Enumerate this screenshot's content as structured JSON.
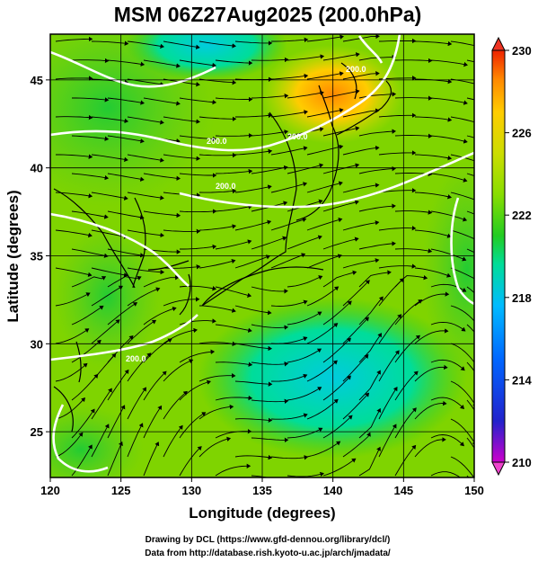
{
  "title": "MSM 06Z27Aug2025 (200.0hPa)",
  "xlabel": "Longitude (degrees)",
  "ylabel": "Latitude  (degrees)",
  "xticks": [
    120,
    125,
    130,
    135,
    140,
    145,
    150
  ],
  "yticks": [
    25,
    30,
    35,
    40,
    45
  ],
  "colorbar": {
    "ticks": [
      210,
      214,
      218,
      222,
      226,
      230
    ],
    "min": 210,
    "max": 230,
    "colors": [
      "#cc00cc",
      "#0000cc",
      "#0066ff",
      "#00bbff",
      "#00dd99",
      "#22cc22",
      "#88dd00",
      "#ccdd00",
      "#ffcc00",
      "#ff8800",
      "#ee2200"
    ]
  },
  "contour_labels": [
    "200.0",
    "200.0",
    "200.0",
    "200.0",
    "200.0"
  ],
  "credits": {
    "line1": "Drawing by DCL (https://www.gfd-dennou.org/library/dcl/)",
    "line2": "Data from http://database.rish.kyoto-u.ac.jp/arch/jmadata/"
  },
  "chart_data": {
    "type": "heatmap",
    "title": "MSM 06Z27Aug2025 (200.0hPa)",
    "xlabel": "Longitude (degrees)",
    "ylabel": "Latitude  (degrees)",
    "xlim": [
      120,
      150
    ],
    "ylim": [
      22.4,
      47.6
    ],
    "value_range": [
      210,
      230
    ],
    "overlay": "streamlines",
    "grid": true
  }
}
